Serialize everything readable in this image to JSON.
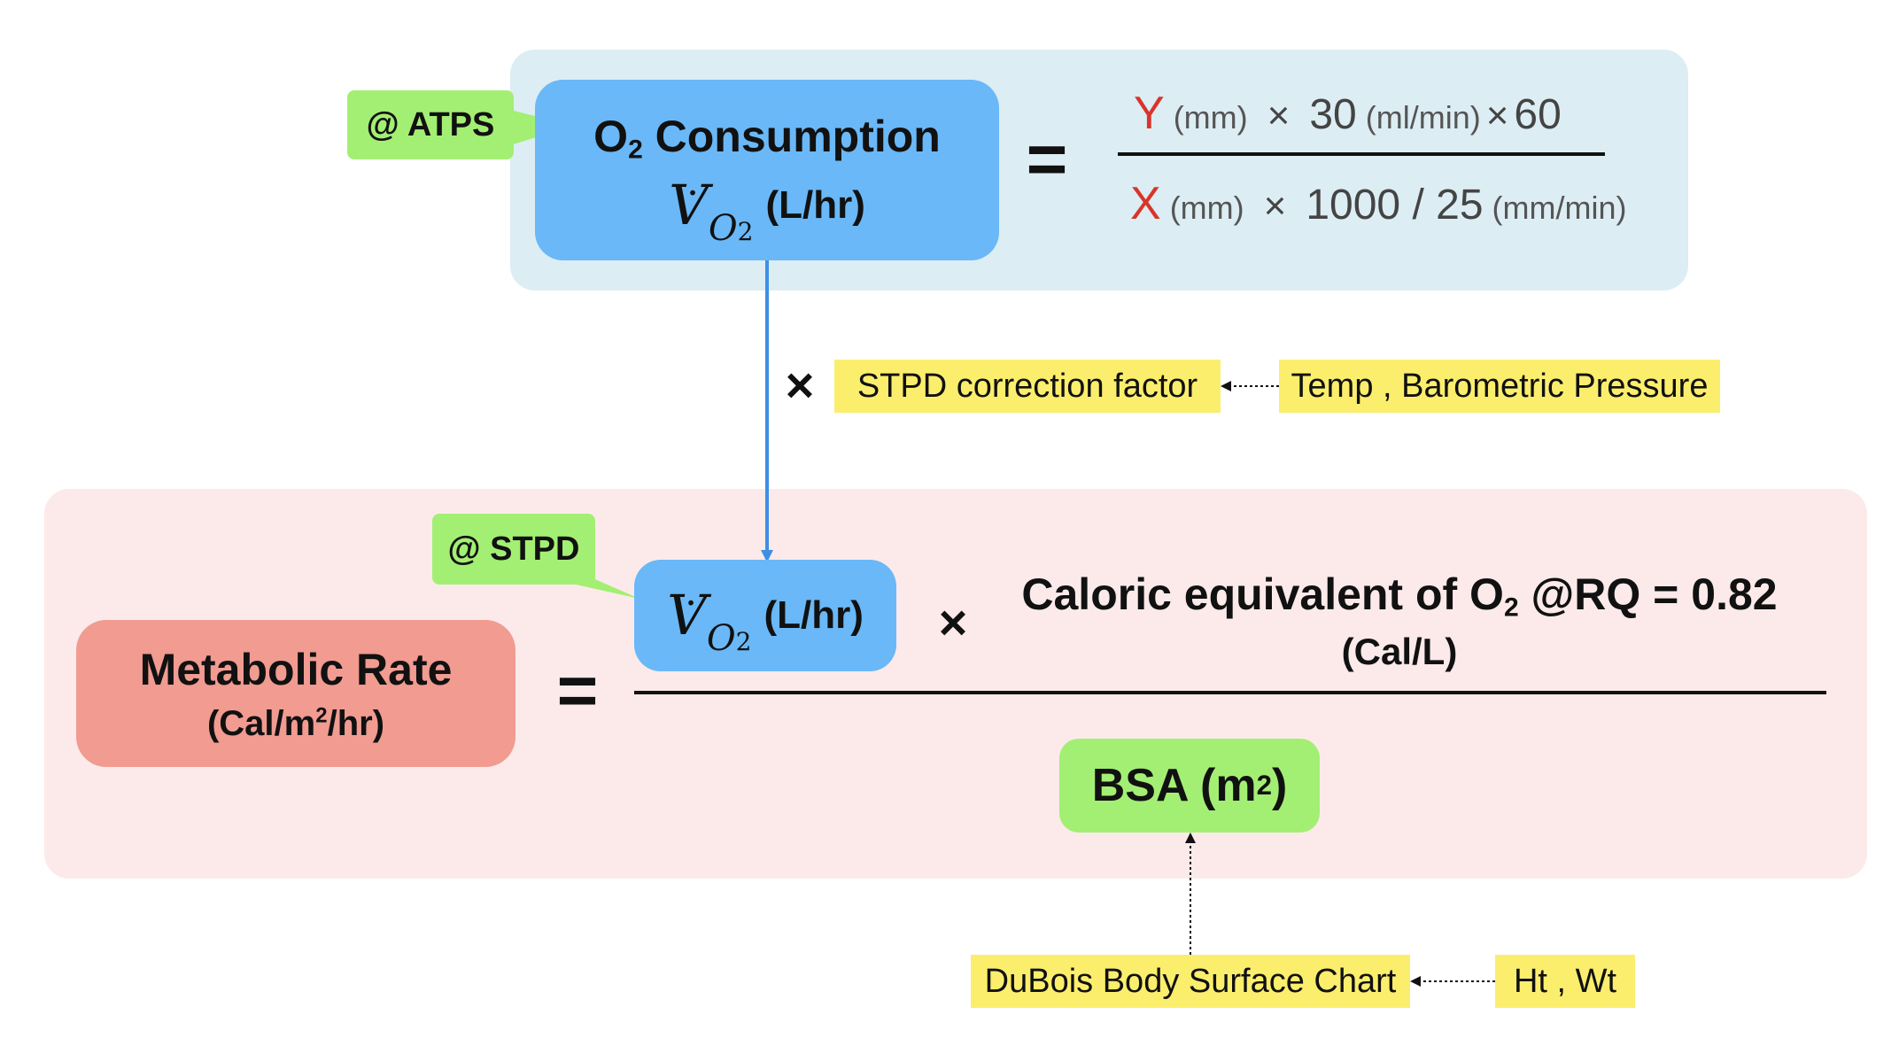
{
  "top": {
    "atps_tag": "@ ATPS",
    "o2_title": "O",
    "o2_title_sub": "2",
    "o2_title_rest": " Consumption",
    "vo2_symbol": "V",
    "vo2_dot": "·",
    "vo2_sub": "O",
    "vo2_sub2": "2",
    "vo2_unit": "(L/hr)",
    "equals": "=",
    "numerator": {
      "var": "Y",
      "var_unit": "(mm)",
      "times": "×",
      "value": "30",
      "value_unit": "(ml/min)",
      "times2": "×",
      "factor": "60"
    },
    "denominator": {
      "var": "X",
      "var_unit": "(mm)",
      "times": "×",
      "value": "1000 / 25",
      "value_unit": "(mm/min)"
    }
  },
  "middle": {
    "times": "×",
    "stpd_factor": "STPD correction factor",
    "temp_pressure": "Temp , Barometric Pressure"
  },
  "bottom": {
    "stpd_tag": "@ STPD",
    "vo2_symbol": "V",
    "vo2_dot": "·",
    "vo2_sub": "O",
    "vo2_sub2": "2",
    "vo2_unit": "(L/hr)",
    "times": "×",
    "caloric_line1_a": "Caloric equivalent of O",
    "caloric_line1_sub": "2",
    "caloric_line1_b": " @RQ = 0.82",
    "caloric_line2": "(Cal/L)",
    "metabolic_title": "Metabolic Rate",
    "metabolic_unit_a": "(Cal/m",
    "metabolic_unit_sup": "2",
    "metabolic_unit_b": "/hr)",
    "equals": "=",
    "bsa_a": "BSA (m",
    "bsa_sup": "2",
    "bsa_b": ")",
    "dubois": "DuBois Body Surface Chart",
    "ht_wt": "Ht , Wt"
  },
  "colors": {
    "top_panel": "#dcedf3",
    "bottom_panel": "#fceaea",
    "blue_box": "#6ab8f7",
    "green_tag": "#a3ef73",
    "yellow_tag": "#fbee6d",
    "metabolic_box": "#f19b91",
    "red_var": "#d9342b",
    "arrow_blue": "#3d8fe6"
  }
}
